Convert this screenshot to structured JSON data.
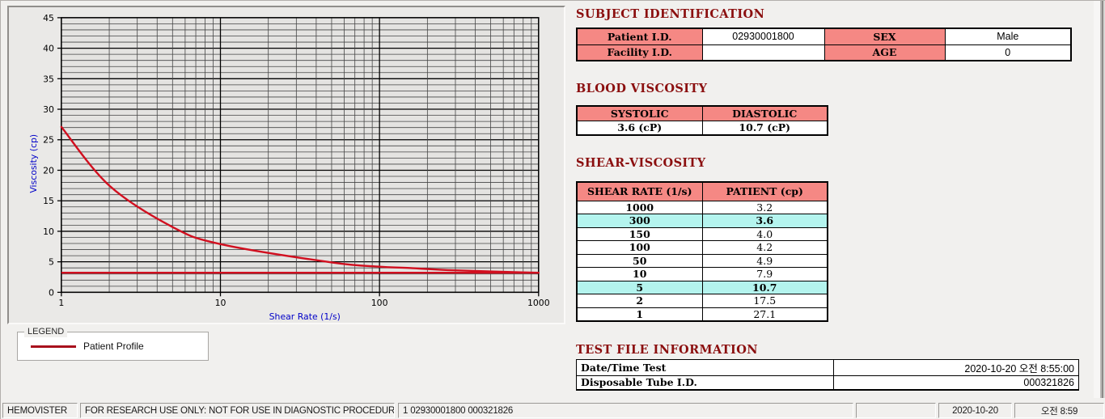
{
  "app_name": "HEMOVISTER",
  "colors": {
    "heading_red": "#8b0f0f",
    "table_header_salmon": "#f58884",
    "highlight_cyan": "#b4f4ee",
    "series_red": "#d10f1f",
    "legend_line_red": "#a8101c",
    "axis_label_blue": "#0000c8"
  },
  "chart_data": {
    "type": "line",
    "x_scale": "log",
    "x": [
      1,
      2,
      5,
      10,
      50,
      100,
      150,
      300,
      1000
    ],
    "series": [
      {
        "name": "Patient Profile",
        "values": [
          27.1,
          17.5,
          10.7,
          7.9,
          4.9,
          4.2,
          4.0,
          3.6,
          3.2
        ],
        "color": "#d10f1f"
      }
    ],
    "asymptote_line": {
      "y": 3.2,
      "color": "#d10f1f"
    },
    "title": "",
    "xlabel": "Shear Rate (1/s)",
    "ylabel": "Viscosity (cp)",
    "xlim": [
      1,
      1000
    ],
    "ylim": [
      0,
      45
    ],
    "y_major_step": 5,
    "y_minor_step": 1,
    "x_ticks": [
      1,
      10,
      100,
      1000
    ],
    "grid": true,
    "legend_position": "below-left"
  },
  "legend": {
    "group_title": "LEGEND",
    "series_label": "Patient Profile"
  },
  "subject_identification": {
    "heading": "SUBJECT IDENTIFICATION",
    "rows": [
      {
        "label1": "Patient I.D.",
        "value1": "02930001800",
        "label2": "SEX",
        "value2": "Male"
      },
      {
        "label1": "Facility I.D.",
        "value1": "",
        "label2": "AGE",
        "value2": "0"
      }
    ]
  },
  "blood_viscosity": {
    "heading": "BLOOD VISCOSITY",
    "columns": [
      "SYSTOLIC",
      "DIASTOLIC"
    ],
    "values": [
      "3.6 (cP)",
      "10.7 (cP)"
    ]
  },
  "shear_viscosity": {
    "heading": "SHEAR-VISCOSITY",
    "columns": [
      "SHEAR RATE (1/s)",
      "PATIENT (cp)"
    ],
    "rows": [
      {
        "shear_rate": "1000",
        "patient": "3.2",
        "highlight": false
      },
      {
        "shear_rate": "300",
        "patient": "3.6",
        "highlight": true
      },
      {
        "shear_rate": "150",
        "patient": "4.0",
        "highlight": false
      },
      {
        "shear_rate": "100",
        "patient": "4.2",
        "highlight": false
      },
      {
        "shear_rate": "50",
        "patient": "4.9",
        "highlight": false
      },
      {
        "shear_rate": "10",
        "patient": "7.9",
        "highlight": false
      },
      {
        "shear_rate": "5",
        "patient": "10.7",
        "highlight": true
      },
      {
        "shear_rate": "2",
        "patient": "17.5",
        "highlight": false
      },
      {
        "shear_rate": "1",
        "patient": "27.1",
        "highlight": false
      }
    ]
  },
  "test_file_information": {
    "heading": "TEST FILE INFORMATION",
    "rows": [
      {
        "label": "Date/Time Test",
        "value": "2020-10-20   오전 8:55:00"
      },
      {
        "label": "Disposable Tube I.D.",
        "value": "000321826"
      }
    ]
  },
  "status_bar": {
    "panels": [
      {
        "text": "HEMOVISTER"
      },
      {
        "text": "FOR RESEARCH USE ONLY: NOT FOR USE IN DIAGNOSTIC PROCEDURES"
      },
      {
        "text": "1  02930001800  000321826"
      },
      {
        "text": ""
      },
      {
        "text": "2020-10-20"
      },
      {
        "text": "오전 8:59"
      }
    ]
  }
}
